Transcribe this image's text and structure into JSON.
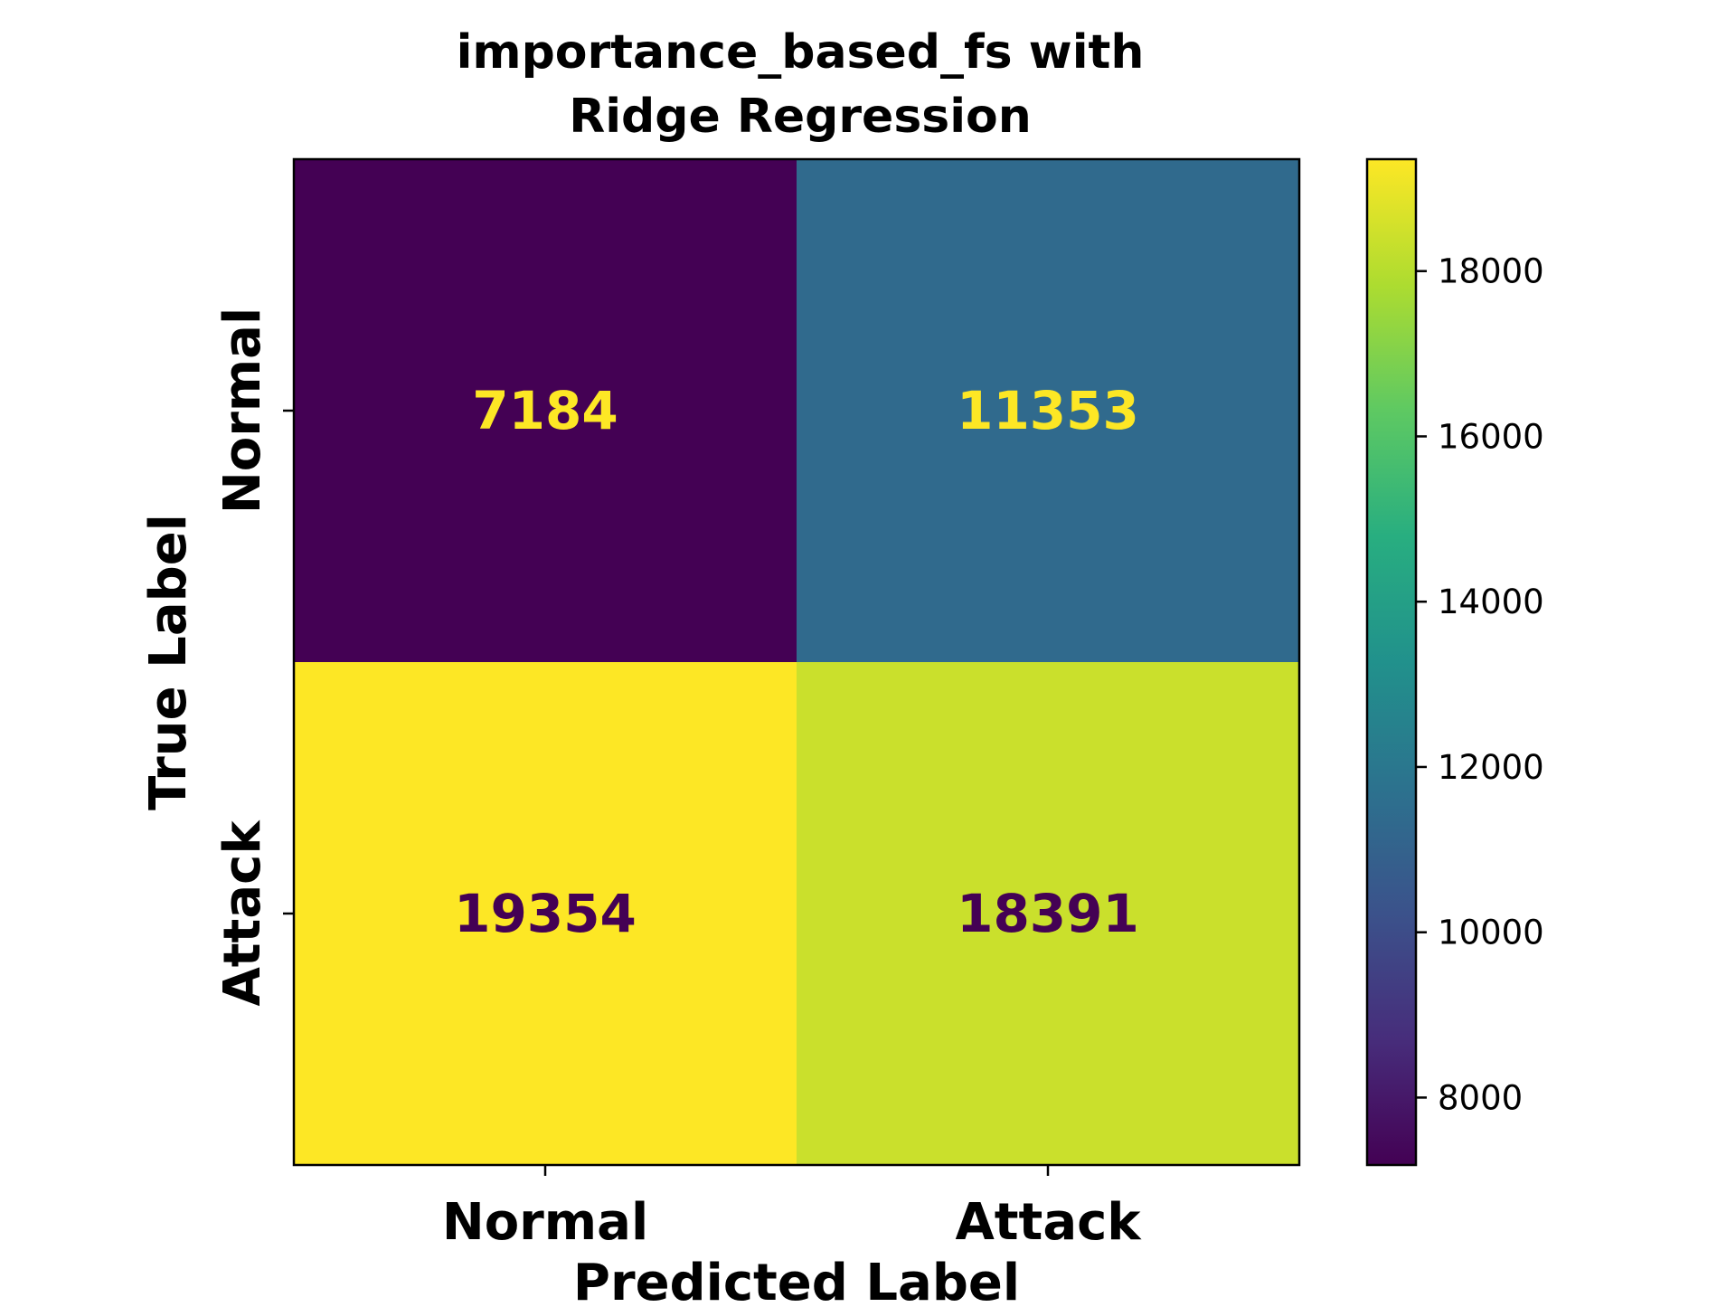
{
  "chart_data": {
    "type": "heatmap",
    "title_lines": [
      "importance_based_fs with",
      "Ridge Regression"
    ],
    "xlabel": "Predicted Label",
    "ylabel": "True Label",
    "x_categories": [
      "Normal",
      "Attack"
    ],
    "y_categories": [
      "Normal",
      "Attack"
    ],
    "values": [
      [
        7184,
        11353
      ],
      [
        19354,
        18391
      ]
    ],
    "colormap": "viridis",
    "colorbar": {
      "min": 7184,
      "max": 19354,
      "ticks": [
        8000,
        10000,
        12000,
        14000,
        16000,
        18000
      ]
    },
    "text_colors": {
      "on_dark": "#fde725",
      "on_light": "#440154"
    }
  }
}
